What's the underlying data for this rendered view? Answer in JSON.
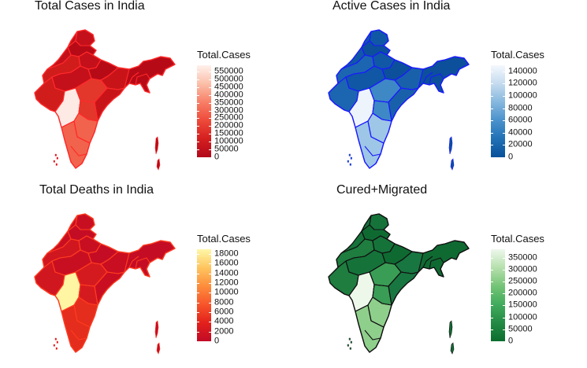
{
  "panels": [
    {
      "id": "total-cases",
      "title": "Total Cases in India",
      "legend_title": "Total.Cases",
      "legend_max": 590000,
      "ticks": [
        550000,
        500000,
        450000,
        400000,
        350000,
        300000,
        250000,
        200000,
        150000,
        100000,
        50000,
        0
      ],
      "gradient": [
        "#b2081a",
        "#d41f1f",
        "#ee4a3a",
        "#f87f67",
        "#fbbfa9",
        "#fff1ec"
      ],
      "border_color": "#ff2a2a",
      "highlight_color": "#fdeae4",
      "state_colors": [
        "#c4101a",
        "#d11c1c",
        "#b70a17",
        "#e3372b",
        "#c81419",
        "#f1634c"
      ]
    },
    {
      "id": "active-cases",
      "title": "Active Cases in India",
      "legend_title": "Total.Cases",
      "legend_max": 150000,
      "ticks": [
        140000,
        120000,
        100000,
        80000,
        60000,
        40000,
        20000,
        0
      ],
      "gradient": [
        "#08509b",
        "#2171b5",
        "#4a92cc",
        "#86b8de",
        "#c5dbef",
        "#f4f8fd"
      ],
      "border_color": "#1a1aff",
      "highlight_color": "#eef4fc",
      "state_colors": [
        "#1057a6",
        "#1c65b0",
        "#0c4f9b",
        "#3e88c6",
        "#1960ab",
        "#9ec6e6"
      ]
    },
    {
      "id": "total-deaths",
      "title": "Total Deaths in India",
      "legend_title": "Total.Cases",
      "legend_max": 19000,
      "ticks": [
        18000,
        16000,
        14000,
        12000,
        10000,
        8000,
        6000,
        4000,
        2000,
        0
      ],
      "gradient": [
        "#c10a26",
        "#e3211c",
        "#f7552b",
        "#fd8d3c",
        "#fec55f",
        "#fff8a8"
      ],
      "border_color": "#ff3b20",
      "highlight_color": "#fff5a3",
      "state_colors": [
        "#c80f22",
        "#d0161f",
        "#c40c24",
        "#d51a1f",
        "#c90e22",
        "#e42d1c"
      ]
    },
    {
      "id": "cured-migrated",
      "title": "Cured+Migrated",
      "legend_title": "Total.Cases",
      "legend_max": 385000,
      "ticks": [
        350000,
        300000,
        250000,
        200000,
        150000,
        100000,
        50000,
        0
      ],
      "gradient": [
        "#0b6d2e",
        "#238b45",
        "#41ab5d",
        "#74c476",
        "#b6e0ad",
        "#eef8ec"
      ],
      "border_color": "#111111",
      "highlight_color": "#edf7ea",
      "state_colors": [
        "#15733a",
        "#1e7d3f",
        "#0f6a32",
        "#3a9d55",
        "#187640",
        "#8fcf8c"
      ]
    }
  ]
}
